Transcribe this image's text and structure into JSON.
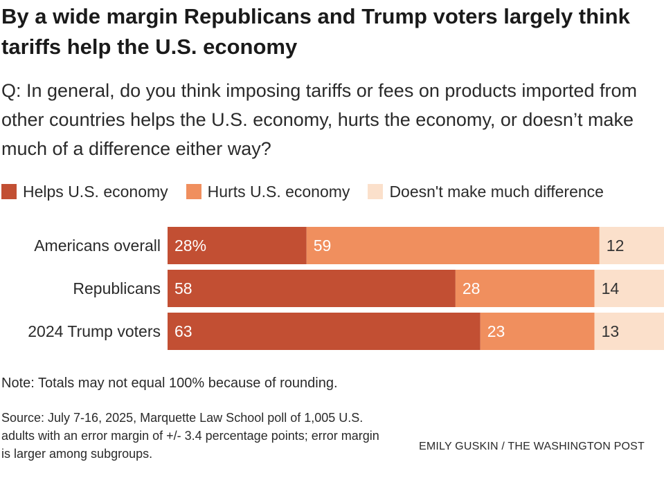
{
  "chart_data": {
    "type": "bar",
    "orientation": "horizontal",
    "stacked": true,
    "title": "By a wide margin Republicans and Trump voters largely think tariffs help the U.S. economy",
    "subtitle": "Q: In general, do you think imposing tariffs or fees on products imported from other countries helps the U.S. economy, hurts the economy, or doesn’t make much of a difference either way?",
    "categories": [
      "Americans overall",
      "Republicans",
      "2024 Trump voters"
    ],
    "series": [
      {
        "name": "Helps U.S. economy",
        "values": [
          28,
          58,
          63
        ],
        "labels": [
          "28%",
          "58",
          "63"
        ],
        "color": "#c24f33",
        "label_color": "#ffffff"
      },
      {
        "name": "Hurts U.S. economy",
        "values": [
          59,
          28,
          23
        ],
        "labels": [
          "59",
          "28",
          "23"
        ],
        "color": "#f08f5e",
        "label_color": "#ffffff"
      },
      {
        "name": "Doesn't make much difference",
        "values": [
          12,
          14,
          13
        ],
        "labels": [
          "12",
          "14",
          "13"
        ],
        "color": "#fbe0cb",
        "label_color": "#333333"
      }
    ],
    "xlim": [
      0,
      100
    ],
    "legend_position": "top",
    "grid": false
  },
  "note": "Note: Totals may not equal 100% because of rounding.",
  "source": "Source: July 7-16, 2025, Marquette Law School poll of 1,005 U.S. adults with an error margin of +/- 3.4 percentage points; error margin is larger among subgroups.",
  "credit": "EMILY GUSKIN / THE WASHINGTON POST"
}
